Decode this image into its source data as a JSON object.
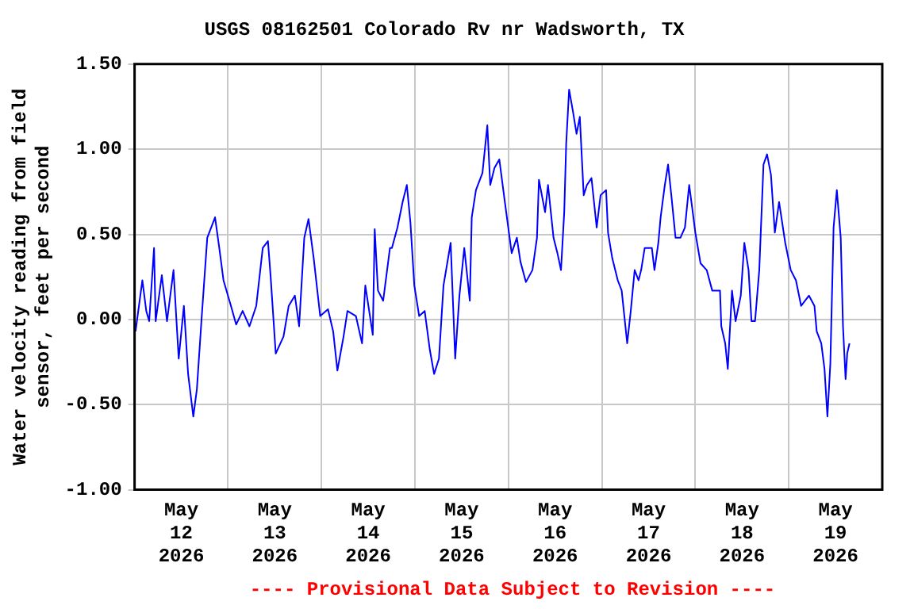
{
  "chart_data": {
    "type": "line",
    "title": "USGS 08162501 Colorado Rv nr Wadsworth, TX",
    "ylabel": "Water velocity reading from field\nsensor, feet per second",
    "annotations": [
      "---- Provisional Data Subject to Revision ----"
    ],
    "xlim": [
      "2026-05-12",
      "2026-05-20"
    ],
    "xticks": [
      {
        "value": "2026-05-12T12:00",
        "label": "May 12 2026"
      },
      {
        "value": "2026-05-13",
        "label": null
      },
      {
        "value": "2026-05-13T12:00",
        "label": "May 13 2026"
      },
      {
        "value": "2026-05-14",
        "label": null
      },
      {
        "value": "2026-05-14T12:00",
        "label": "May 14 2026"
      },
      {
        "value": "2026-05-15",
        "label": null
      },
      {
        "value": "2026-05-15T12:00",
        "label": "May 15 2026"
      },
      {
        "value": "2026-05-16",
        "label": null
      },
      {
        "value": "2026-05-16T12:00",
        "label": "May 16 2026"
      },
      {
        "value": "2026-05-17",
        "label": null
      },
      {
        "value": "2026-05-17T12:00",
        "label": "May 17 2026"
      },
      {
        "value": "2026-05-18",
        "label": null
      },
      {
        "value": "2026-05-18T12:00",
        "label": "May 18 2026"
      },
      {
        "value": "2026-05-19",
        "label": null
      },
      {
        "value": "2026-05-19T12:00",
        "label": "May 19 2026"
      }
    ],
    "ylim": [
      -1.0,
      1.5
    ],
    "yticks": [
      {
        "value": -1.0,
        "label": "-1.00"
      },
      {
        "value": -0.5,
        "label": "-0.50"
      },
      {
        "value": 0,
        "label": "0.00"
      },
      {
        "value": 0.5,
        "label": "0.50"
      },
      {
        "value": 1.0,
        "label": "1.00"
      },
      {
        "value": 1.5,
        "label": "1.50"
      }
    ],
    "grid": true,
    "legend": false,
    "marker": "none",
    "line_style": "solid",
    "series": [
      {
        "color": "#0000ff",
        "x": [
          "2026-05-12T00:15",
          "2026-05-12T02:00",
          "2026-05-12T03:00",
          "2026-05-12T03:45",
          "2026-05-12T05:00",
          "2026-05-12T05:25",
          "2026-05-12T07:00",
          "2026-05-12T08:20",
          "2026-05-12T10:00",
          "2026-05-12T11:20",
          "2026-05-12T12:40",
          "2026-05-12T13:45",
          "2026-05-12T15:05",
          "2026-05-12T16:00",
          "2026-05-12T17:10",
          "2026-05-12T18:40",
          "2026-05-12T20:40",
          "2026-05-12T21:45",
          "2026-05-12T22:50",
          "2026-05-13T00:45",
          "2026-05-13T02:05",
          "2026-05-13T03:45",
          "2026-05-13T05:30",
          "2026-05-13T07:15",
          "2026-05-13T08:55",
          "2026-05-13T10:15",
          "2026-05-13T10:55",
          "2026-05-13T12:15",
          "2026-05-13T14:15",
          "2026-05-13T15:35",
          "2026-05-13T17:10",
          "2026-05-13T18:15",
          "2026-05-13T19:35",
          "2026-05-13T20:40",
          "2026-05-13T22:00",
          "2026-05-13T23:40",
          "2026-05-14T01:40",
          "2026-05-14T03:00",
          "2026-05-14T04:05",
          "2026-05-14T05:40",
          "2026-05-14T06:40",
          "2026-05-14T08:50",
          "2026-05-14T10:25",
          "2026-05-14T11:15",
          "2026-05-14T13:10",
          "2026-05-14T13:40",
          "2026-05-14T14:30",
          "2026-05-14T15:50",
          "2026-05-14T17:35",
          "2026-05-14T18:05",
          "2026-05-14T19:30",
          "2026-05-14T20:50",
          "2026-05-14T21:55",
          "2026-05-14T22:50",
          "2026-05-14T23:50",
          "2026-05-15T01:05",
          "2026-05-15T02:30",
          "2026-05-15T03:50",
          "2026-05-15T04:55",
          "2026-05-15T06:10",
          "2026-05-15T07:20",
          "2026-05-15T09:10",
          "2026-05-15T10:20",
          "2026-05-15T11:25",
          "2026-05-15T12:40",
          "2026-05-15T14:05",
          "2026-05-15T14:35",
          "2026-05-15T15:40",
          "2026-05-15T17:20",
          "2026-05-15T18:35",
          "2026-05-15T19:20",
          "2026-05-15T20:25",
          "2026-05-15T21:40",
          "2026-05-15T23:05",
          "2026-05-16T00:50",
          "2026-05-16T02:10",
          "2026-05-16T03:05",
          "2026-05-16T04:30",
          "2026-05-16T06:10",
          "2026-05-16T07:20",
          "2026-05-16T07:50",
          "2026-05-16T09:25",
          "2026-05-16T10:10",
          "2026-05-16T11:35",
          "2026-05-16T12:35",
          "2026-05-16T13:30",
          "2026-05-16T14:20",
          "2026-05-16T14:50",
          "2026-05-16T15:35",
          "2026-05-16T16:35",
          "2026-05-16T17:30",
          "2026-05-16T18:20",
          "2026-05-16T19:20",
          "2026-05-16T20:10",
          "2026-05-16T21:20",
          "2026-05-16T22:40",
          "2026-05-16T23:40",
          "2026-05-17T01:05",
          "2026-05-17T01:35",
          "2026-05-17T02:40",
          "2026-05-17T04:05",
          "2026-05-17T05:05",
          "2026-05-17T06:30",
          "2026-05-17T07:25",
          "2026-05-17T08:25",
          "2026-05-17T09:25",
          "2026-05-17T10:05",
          "2026-05-17T11:00",
          "2026-05-17T12:50",
          "2026-05-17T13:30",
          "2026-05-17T14:30",
          "2026-05-17T15:05",
          "2026-05-17T16:10",
          "2026-05-17T17:00",
          "2026-05-17T17:50",
          "2026-05-17T18:55",
          "2026-05-17T20:10",
          "2026-05-17T21:20",
          "2026-05-17T22:25",
          "2026-05-17T23:10",
          "2026-05-18T00:00",
          "2026-05-18T01:20",
          "2026-05-18T02:55",
          "2026-05-18T04:20",
          "2026-05-18T06:20",
          "2026-05-18T06:40",
          "2026-05-18T07:40",
          "2026-05-18T08:20",
          "2026-05-18T09:25",
          "2026-05-18T10:20",
          "2026-05-18T11:40",
          "2026-05-18T12:35",
          "2026-05-18T13:40",
          "2026-05-18T14:25",
          "2026-05-18T15:20",
          "2026-05-18T16:25",
          "2026-05-18T17:30",
          "2026-05-18T18:25",
          "2026-05-18T19:25",
          "2026-05-18T20:25",
          "2026-05-18T21:30",
          "2026-05-18T23:05",
          "2026-05-19T00:30",
          "2026-05-19T01:50",
          "2026-05-19T03:10",
          "2026-05-19T05:10",
          "2026-05-19T06:35",
          "2026-05-19T07:10",
          "2026-05-19T08:20",
          "2026-05-19T09:10",
          "2026-05-19T09:55",
          "2026-05-19T10:40",
          "2026-05-19T11:30",
          "2026-05-19T12:20",
          "2026-05-19T13:20",
          "2026-05-19T13:55",
          "2026-05-19T14:35",
          "2026-05-19T15:00",
          "2026-05-19T15:35"
        ],
        "values": [
          -0.07,
          0.23,
          0.05,
          -0.01,
          0.42,
          -0.01,
          0.26,
          -0.01,
          0.29,
          -0.23,
          0.08,
          -0.32,
          -0.57,
          -0.41,
          -0.01,
          0.48,
          0.6,
          0.42,
          0.23,
          0.08,
          -0.03,
          0.05,
          -0.04,
          0.08,
          0.42,
          0.46,
          0.26,
          -0.2,
          -0.1,
          0.08,
          0.14,
          -0.04,
          0.48,
          0.59,
          0.36,
          0.02,
          0.06,
          -0.07,
          -0.3,
          -0.1,
          0.05,
          0.02,
          -0.14,
          0.2,
          -0.09,
          0.53,
          0.17,
          0.11,
          0.42,
          0.42,
          0.54,
          0.69,
          0.79,
          0.57,
          0.2,
          0.02,
          0.05,
          -0.18,
          -0.32,
          -0.23,
          0.2,
          0.45,
          -0.23,
          0.14,
          0.42,
          0.11,
          0.6,
          0.76,
          0.86,
          1.14,
          0.79,
          0.89,
          0.94,
          0.69,
          0.39,
          0.48,
          0.34,
          0.22,
          0.29,
          0.48,
          0.82,
          0.63,
          0.79,
          0.48,
          0.39,
          0.29,
          0.63,
          1.03,
          1.35,
          1.22,
          1.09,
          1.19,
          0.73,
          0.79,
          0.83,
          0.54,
          0.73,
          0.76,
          0.51,
          0.36,
          0.23,
          0.17,
          -0.14,
          0.05,
          0.29,
          0.23,
          0.29,
          0.42,
          0.42,
          0.29,
          0.45,
          0.6,
          0.79,
          0.91,
          0.73,
          0.48,
          0.48,
          0.54,
          0.79,
          0.66,
          0.51,
          0.33,
          0.29,
          0.17,
          0.17,
          -0.04,
          -0.14,
          -0.29,
          0.17,
          -0.01,
          0.14,
          0.45,
          0.29,
          -0.01,
          -0.01,
          0.29,
          0.91,
          0.97,
          0.85,
          0.51,
          0.69,
          0.45,
          0.29,
          0.23,
          0.08,
          0.14,
          0.08,
          -0.07,
          -0.14,
          -0.29,
          -0.57,
          -0.26,
          0.54,
          0.76,
          0.48,
          -0.04,
          -0.35,
          -0.2,
          -0.14
        ]
      }
    ]
  }
}
